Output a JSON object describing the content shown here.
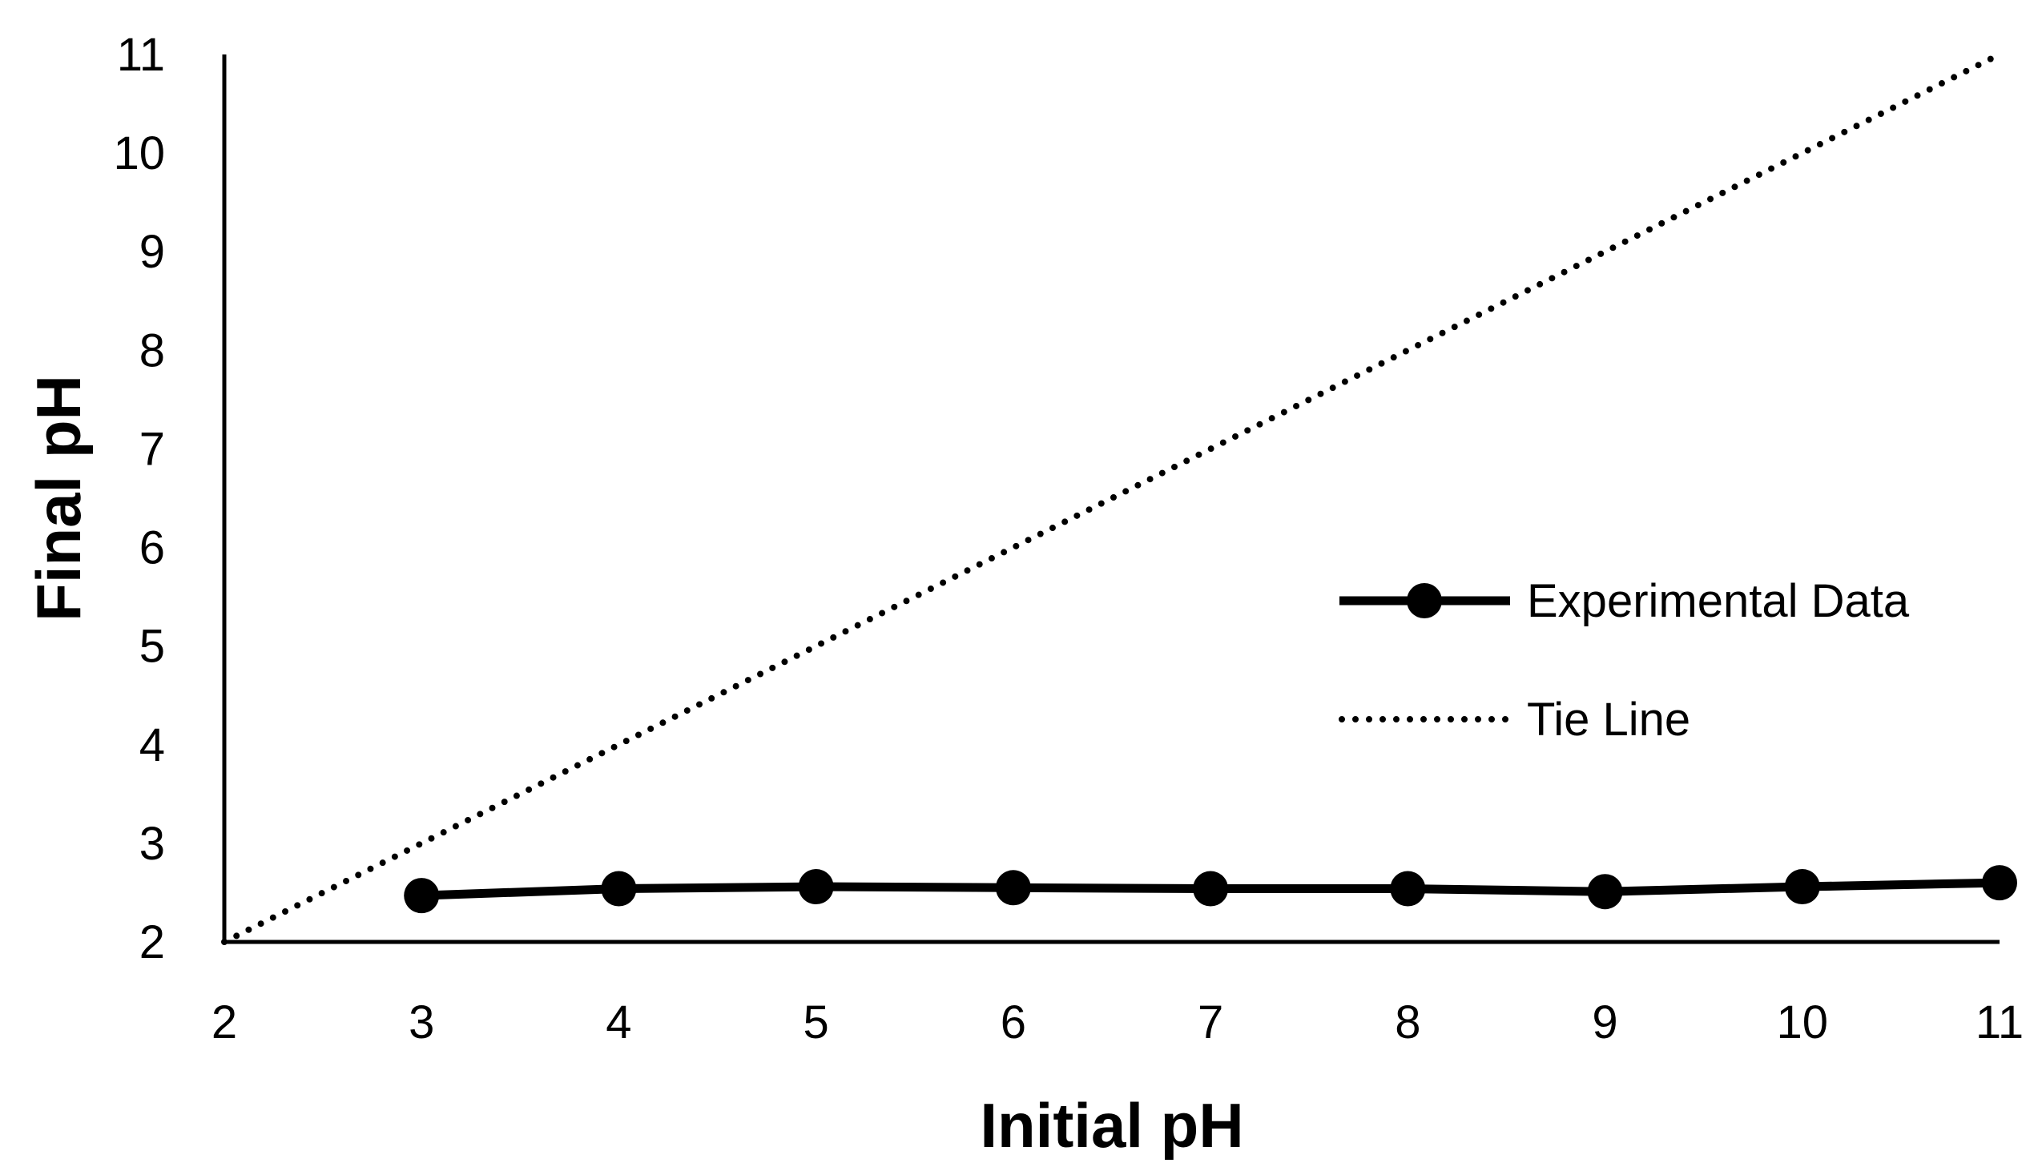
{
  "chart_data": {
    "type": "line",
    "title": "",
    "xlabel": "Initial pH",
    "ylabel": "Final pH",
    "xlim": [
      2,
      11
    ],
    "ylim": [
      2,
      11
    ],
    "x_ticks": [
      2,
      3,
      4,
      5,
      6,
      7,
      8,
      9,
      10,
      11
    ],
    "y_ticks": [
      2,
      3,
      4,
      5,
      6,
      7,
      8,
      9,
      10,
      11
    ],
    "grid": false,
    "legend_position": "right",
    "series": [
      {
        "name": "Experimental Data",
        "style": "solid",
        "marker": "circle",
        "color": "#000000",
        "x": [
          3,
          4,
          5,
          6,
          7,
          8,
          9,
          10,
          11
        ],
        "y": [
          2.47,
          2.54,
          2.56,
          2.55,
          2.54,
          2.54,
          2.51,
          2.56,
          2.6
        ]
      },
      {
        "name": "Tie Line",
        "style": "dotted",
        "marker": "none",
        "color": "#000000",
        "x": [
          2,
          11
        ],
        "y": [
          2,
          11
        ]
      }
    ]
  }
}
